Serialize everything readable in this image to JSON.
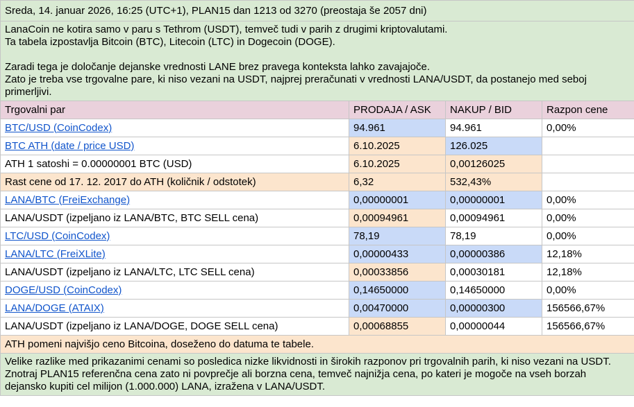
{
  "header": "Sreda, 14. januar 2026, 16:25 (UTC+1), PLAN15 dan 1213 od 3270 (preostaja še 2057 dni)",
  "intro": {
    "line1": "LanaCoin ne kotira samo v paru s Tethrom (USDT), temveč tudi v parih z drugimi kriptovalutami.",
    "line2": "Ta tabela izpostavlja Bitcoin (BTC), Litecoin (LTC) in Dogecoin (DOGE).",
    "line3": "Zaradi tega je določanje dejanske vrednosti LANE brez pravega konteksta lahko zavajajoče.",
    "line4": "Zato je treba vse trgovalne pare, ki niso vezani na USDT, najprej preračunati v vrednosti LANA/USDT, da postanejo med seboj primerljivi."
  },
  "columns": {
    "pair": "Trgovalni par",
    "ask": "PRODAJA / ASK",
    "bid": "NAKUP / BID",
    "spread": "Razpon cene"
  },
  "rows": [
    {
      "pair": "BTC/USD (CoinCodex)",
      "ask": "94.961",
      "bid": "94.961",
      "spread": "0,00%"
    },
    {
      "pair": "BTC ATH (date / price USD)",
      "ask": "6.10.2025",
      "bid": "126.025",
      "spread": ""
    },
    {
      "pair": "ATH 1 satoshi = 0.00000001 BTC (USD)",
      "ask": "6.10.2025",
      "bid": "0,00126025",
      "spread": ""
    },
    {
      "pair": "Rast cene od 17. 12. 2017 do ATH (količnik / odstotek)",
      "ask": "6,32",
      "bid": "532,43%",
      "spread": ""
    },
    {
      "pair": "LANA/BTC (FreiExchange)",
      "ask": "0,00000001",
      "bid": "0,00000001",
      "spread": "0,00%"
    },
    {
      "pair": "LANA/USDT (izpeljano iz LANA/BTC, BTC SELL cena)",
      "ask": "0,00094961",
      "bid": "0,00094961",
      "spread": "0,00%"
    },
    {
      "pair": "LTC/USD (CoinCodex)",
      "ask": "78,19",
      "bid": "78,19",
      "spread": "0,00%"
    },
    {
      "pair": "LANA/LTC (FreiXLite)",
      "ask": "0,00000433",
      "bid": "0,00000386",
      "spread": "12,18%"
    },
    {
      "pair": "LANA/USDT (izpeljano iz LANA/LTC, LTC SELL cena)",
      "ask": "0,00033856",
      "bid": "0,00030181",
      "spread": "12,18%"
    },
    {
      "pair": "DOGE/USD (CoinCodex)",
      "ask": "0,14650000",
      "bid": "0,14650000",
      "spread": "0,00%"
    },
    {
      "pair": "LANA/DOGE (ATAIX)",
      "ask": "0,00470000",
      "bid": "0,00000300",
      "spread": "156566,67%"
    },
    {
      "pair": "LANA/USDT (izpeljano iz LANA/DOGE, DOGE SELL cena)",
      "ask": "0,00068855",
      "bid": "0,00000044",
      "spread": "156566,67%"
    }
  ],
  "ath_note": "ATH pomeni najvišjo ceno Bitcoina, doseženo do datuma te tabele.",
  "footer": "Velike razlike med prikazanimi cenami so posledica nizke likvidnosti in širokih razponov pri trgovalnih parih, ki niso vezani na USDT. Znotraj PLAN15 referenčna cena zato ni povprečje ali borzna cena, temveč najnižja cena, po kateri je mogoče na vseh borzah dejansko kupiti cel milijon (1.000.000) LANA, izražena v LANA/USDT.",
  "colors": {
    "green": "#d9ead3",
    "pink": "#ead1dc",
    "blue": "#c9daf8",
    "yellow": "#fce5cd",
    "link": "#1155cc"
  }
}
